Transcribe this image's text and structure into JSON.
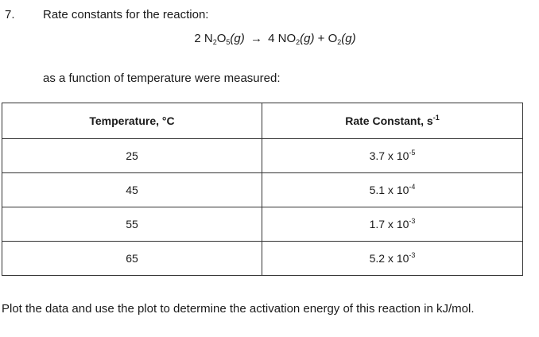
{
  "question": {
    "number": "7.",
    "intro": "Rate constants for the reaction:",
    "equation": {
      "coef1": "2",
      "reactant": "N",
      "reactant_sub1": "2",
      "reactant_mid": "O",
      "reactant_sub2": "5",
      "reactant_phase": "(g)",
      "arrow": "→",
      "coef2": "4",
      "product1": "NO",
      "product1_sub": "2",
      "product1_phase": "(g)",
      "plus": "+",
      "product2": "O",
      "product2_sub": "2",
      "product2_phase": "(g)"
    },
    "intro2": "as a function of temperature were measured:",
    "footer": "Plot the data and use the plot to determine the activation energy of this reaction in kJ/mol."
  },
  "table": {
    "headers": {
      "temperature": "Temperature, °C",
      "rate": "Rate Constant, s",
      "rate_exp": "-1"
    },
    "rows": [
      {
        "temp": "25",
        "mantissa": "3.7 x 10",
        "exp": "-5"
      },
      {
        "temp": "45",
        "mantissa": "5.1 x 10",
        "exp": "-4"
      },
      {
        "temp": "55",
        "mantissa": "1.7 x 10",
        "exp": "-3"
      },
      {
        "temp": "65",
        "mantissa": "5.2 x 10",
        "exp": "-3"
      }
    ]
  }
}
